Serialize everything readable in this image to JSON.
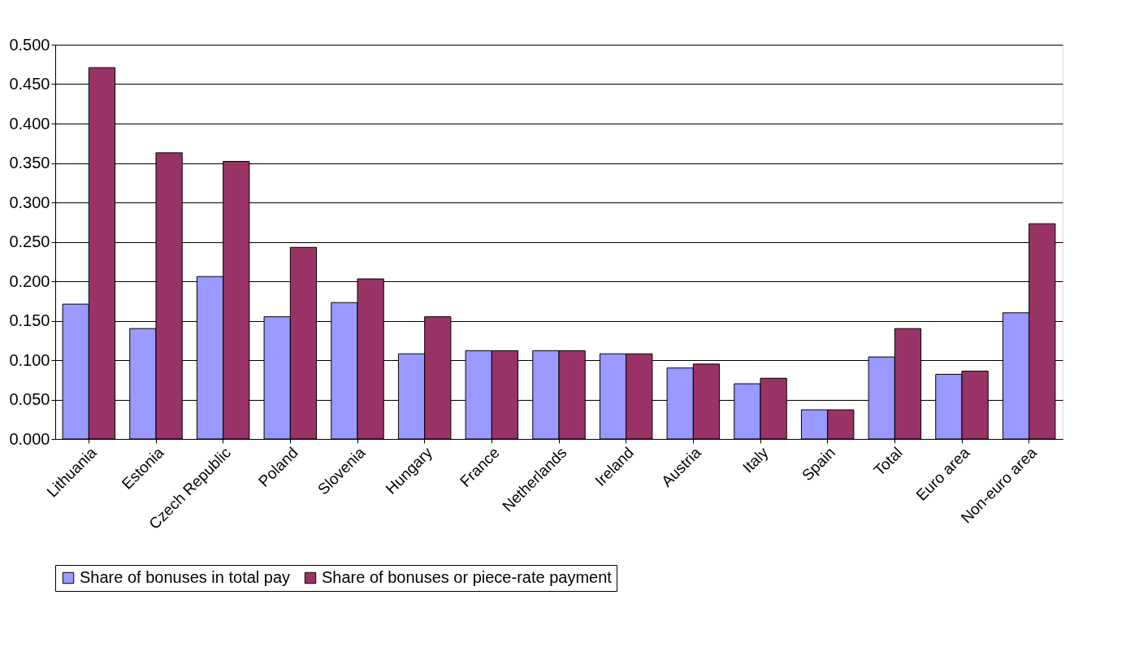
{
  "chart_data": {
    "type": "bar",
    "categories": [
      "Lithuania",
      "Estonia",
      "Czech Republic",
      "Poland",
      "Slovenia",
      "Hungary",
      "France",
      "Netherlands",
      "Ireland",
      "Austria",
      "Italy",
      "Spain",
      "Total",
      "Euro area",
      "Non-euro area"
    ],
    "series": [
      {
        "name": "Share of bonuses in total pay",
        "color": "#9999ff",
        "values": [
          0.171,
          0.14,
          0.206,
          0.155,
          0.173,
          0.108,
          0.112,
          0.112,
          0.108,
          0.09,
          0.07,
          0.037,
          0.104,
          0.082,
          0.16
        ]
      },
      {
        "name": "Share of bonuses or piece-rate payment",
        "color": "#993366",
        "values": [
          0.471,
          0.363,
          0.352,
          0.243,
          0.203,
          0.155,
          0.112,
          0.112,
          0.108,
          0.095,
          0.077,
          0.037,
          0.14,
          0.086,
          0.273
        ]
      }
    ],
    "ylim": [
      0,
      0.5
    ],
    "yticks": [
      {
        "value": 0,
        "label": "0.000"
      },
      {
        "value": 0.05,
        "label": "0.050"
      },
      {
        "value": 0.1,
        "label": "0.100"
      },
      {
        "value": 0.15,
        "label": "0.150"
      },
      {
        "value": 0.2,
        "label": "0.200"
      },
      {
        "value": 0.25,
        "label": "0.250"
      },
      {
        "value": 0.3,
        "label": "0.300"
      },
      {
        "value": 0.35,
        "label": "0.350"
      },
      {
        "value": 0.4,
        "label": "0.400"
      },
      {
        "value": 0.45,
        "label": "0.450"
      },
      {
        "value": 0.5,
        "label": "0.500"
      }
    ],
    "grid": "y",
    "legend": "bottom"
  }
}
